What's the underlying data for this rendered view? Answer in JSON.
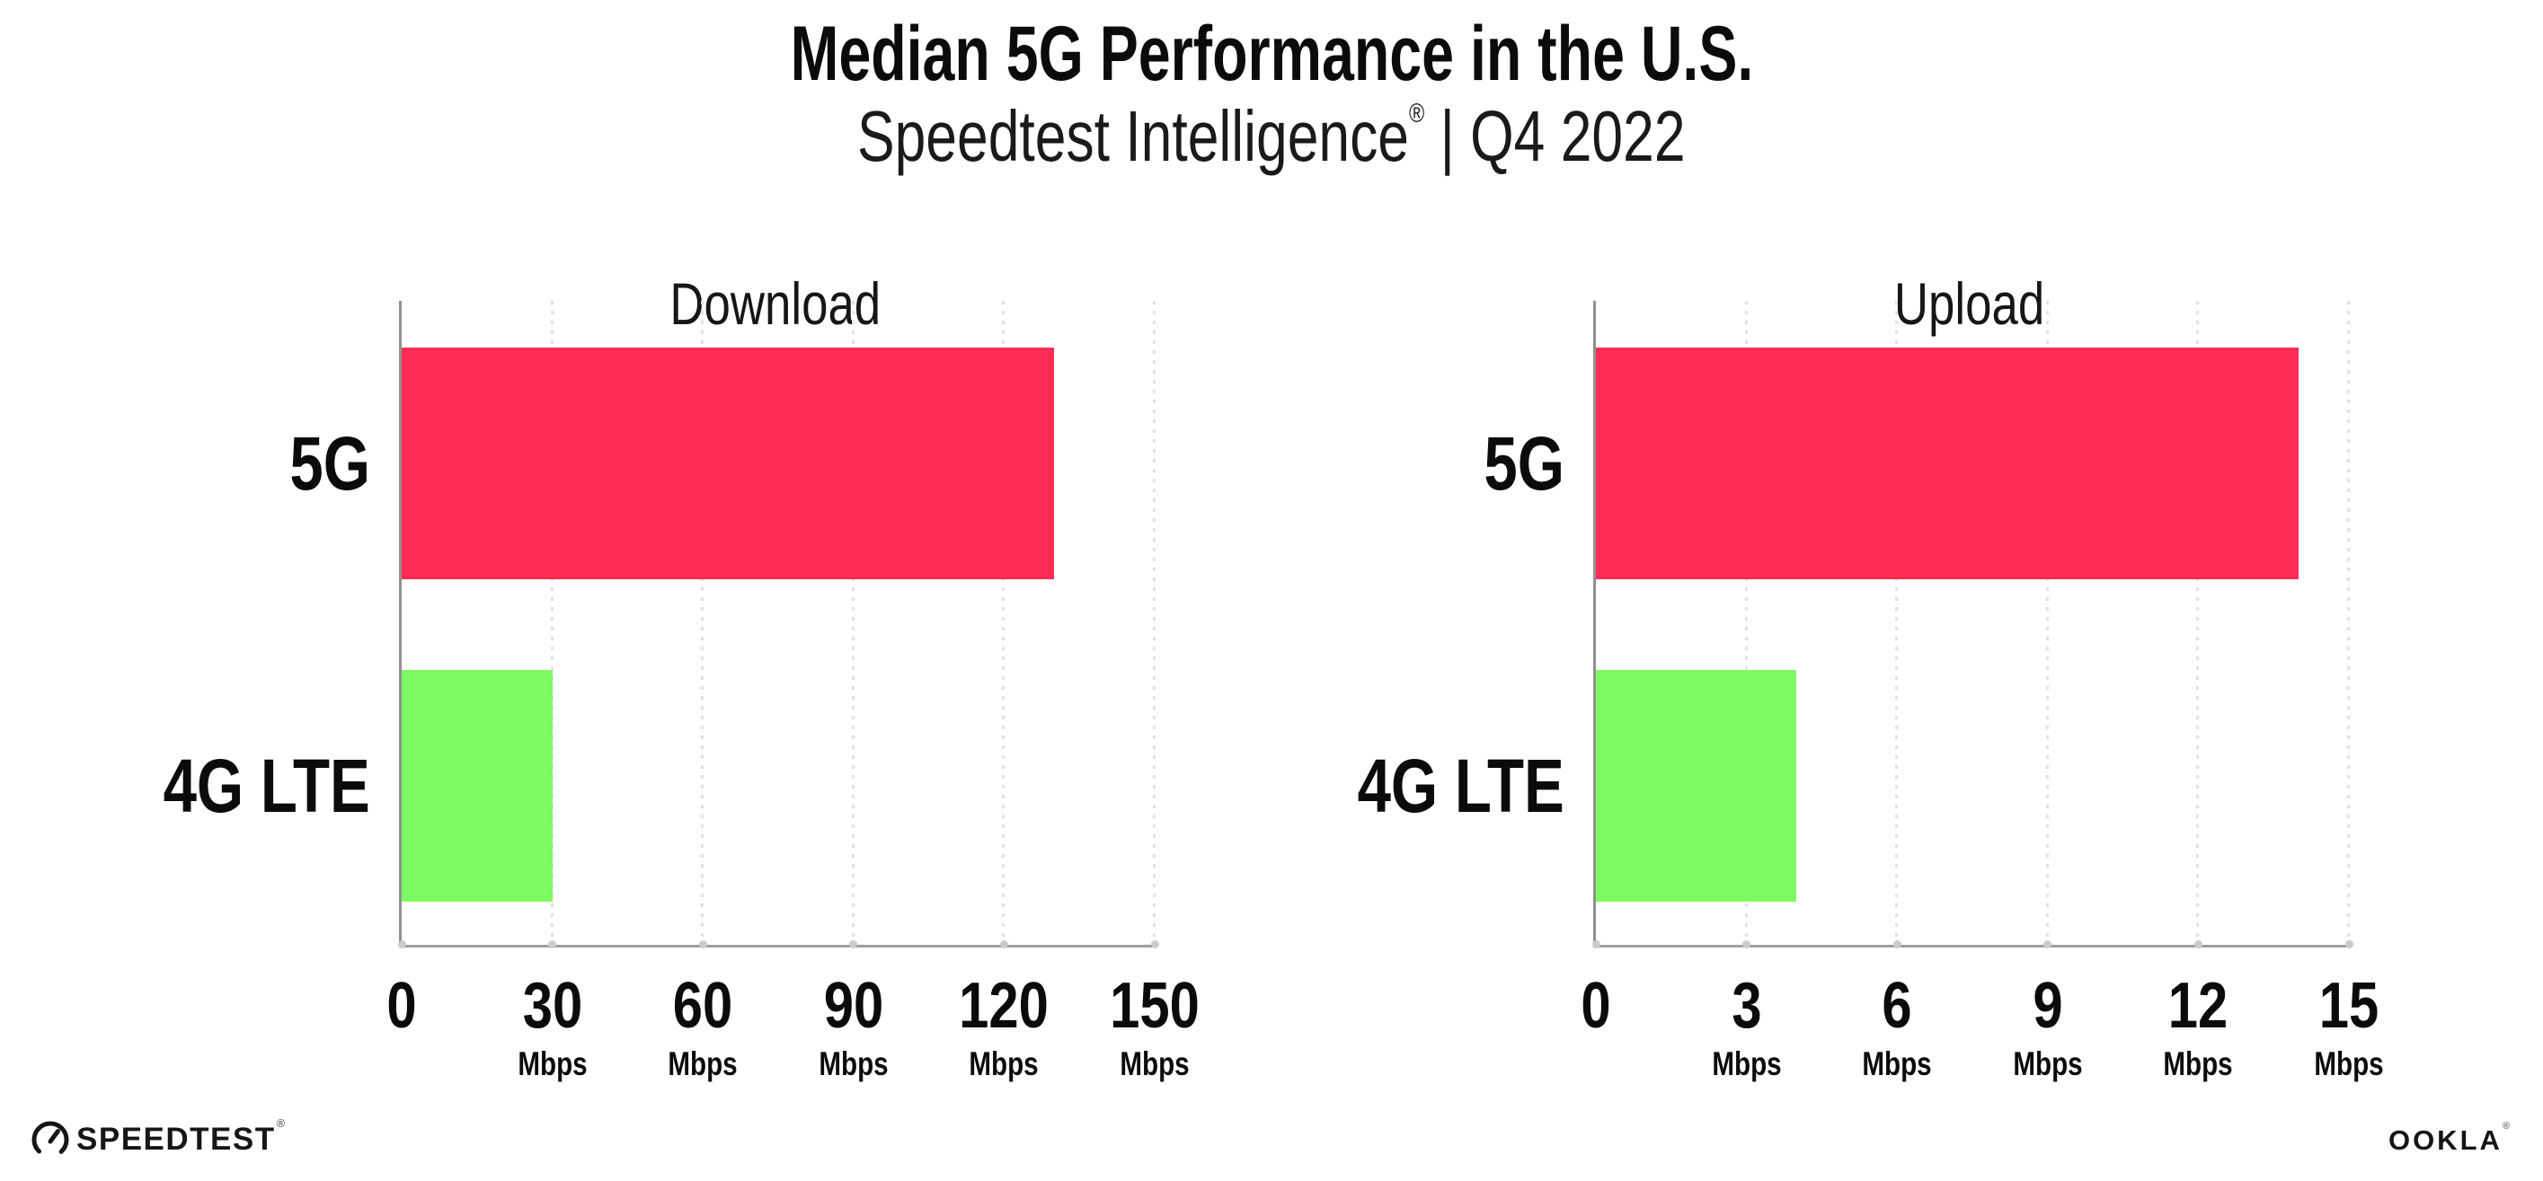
{
  "header": {
    "title": "Median 5G Performance in the U.S.",
    "subtitle_brand": "Speedtest Intelligence",
    "subtitle_mark": "®",
    "subtitle_rest": " | Q4 2022"
  },
  "colors": {
    "bar_5g": "#FF2D55",
    "bar_4g_lte": "#7DFA63",
    "x_axis": "#9E9E9E",
    "y_axis": "#909090",
    "grid_dot": "#E2E0EA",
    "axis_tick_dot": "#CBC9D4",
    "text": "#0B0B0B"
  },
  "chart_data": [
    {
      "type": "bar",
      "orientation": "horizontal",
      "title": "Download",
      "categories": [
        "5G",
        "4G LTE"
      ],
      "values": [
        130,
        30
      ],
      "unit": "Mbps",
      "xlim": [
        0,
        150
      ],
      "xticks": [
        0,
        30,
        60,
        90,
        120,
        150
      ],
      "bar_colors": [
        "#FF2D55",
        "#7DFA63"
      ],
      "grid": "vertical-dotted",
      "legend": "none"
    },
    {
      "type": "bar",
      "orientation": "horizontal",
      "title": "Upload",
      "categories": [
        "5G",
        "4G LTE"
      ],
      "values": [
        14,
        4
      ],
      "unit": "Mbps",
      "xlim": [
        0,
        15
      ],
      "xticks": [
        0,
        3,
        6,
        9,
        12,
        15
      ],
      "bar_colors": [
        "#FF2D55",
        "#7DFA63"
      ],
      "grid": "vertical-dotted",
      "legend": "none"
    }
  ],
  "footer": {
    "speedtest_logo_text": "SPEEDTEST",
    "speedtest_mark": "®",
    "ookla_logo_text": "OOKLA",
    "ookla_mark": "®"
  }
}
